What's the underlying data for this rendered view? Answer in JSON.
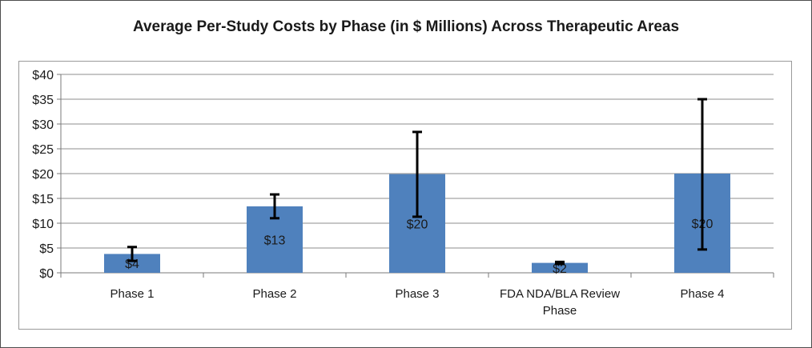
{
  "chart_data": {
    "type": "bar",
    "title": "Average Per-Study Costs by Phase (in $ Millions) Across Therapeutic Areas",
    "xlabel": "",
    "ylabel": "",
    "ylim": [
      0,
      40
    ],
    "y_ticks": [
      0,
      5,
      10,
      15,
      20,
      25,
      30,
      35,
      40
    ],
    "y_tick_labels": [
      "$0",
      "$5",
      "$10",
      "$15",
      "$20",
      "$25",
      "$30",
      "$35",
      "$40"
    ],
    "grid": true,
    "legend": "none",
    "categories": [
      [
        "Phase 1"
      ],
      [
        "Phase 2"
      ],
      [
        "Phase 3"
      ],
      [
        "FDA NDA/BLA Review",
        "Phase"
      ],
      [
        "Phase 4"
      ]
    ],
    "values": [
      3.8,
      13.4,
      19.9,
      2.0,
      20.0
    ],
    "data_labels": [
      "$4",
      "$13",
      "$20",
      "$2",
      "$20"
    ],
    "error_low": [
      2.4,
      11.0,
      11.3,
      1.8,
      4.7
    ],
    "error_high": [
      5.2,
      15.8,
      28.4,
      2.2,
      35.0
    ],
    "bar_color": "#4f81bd",
    "grid_color": "#8c8c8c",
    "error_color": "#000000"
  }
}
